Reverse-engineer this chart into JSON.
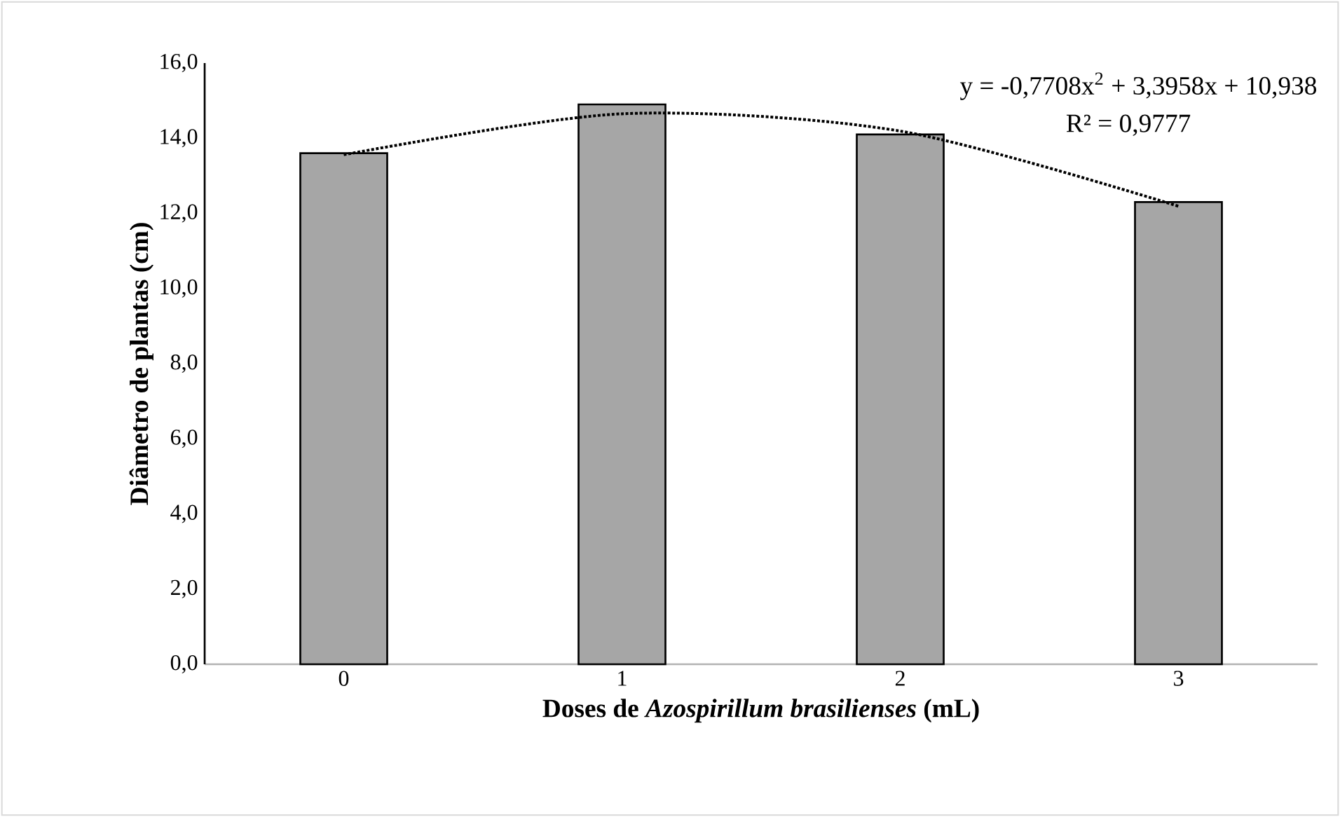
{
  "chart_data": {
    "type": "bar",
    "xlabel": "Doses de *Azospirillum brasilienses* (mL)",
    "ylabel": "Diâmetro de plantas (cm)",
    "categories": [
      "0",
      "1",
      "2",
      "3"
    ],
    "series": [
      {
        "color": "#a6a6a6",
        "values": [
          13.6,
          14.9,
          14.1,
          12.3
        ]
      },
      {
        "type": "line",
        "color": "#000000",
        "line_style": "dotted",
        "values": [
          13.56,
          14.65,
          14.19,
          12.19
        ]
      }
    ],
    "ylim": [
      0,
      16
    ],
    "yticks": [
      {
        "value": 0,
        "label": "0,0"
      },
      {
        "value": 2,
        "label": "2,0"
      },
      {
        "value": 4,
        "label": "4,0"
      },
      {
        "value": 6,
        "label": "6,0"
      },
      {
        "value": 8,
        "label": "8,0"
      },
      {
        "value": 10,
        "label": "10,0"
      },
      {
        "value": 12,
        "label": "12,0"
      },
      {
        "value": 14,
        "label": "14,0"
      },
      {
        "value": 16,
        "label": "16,0"
      }
    ],
    "annotations": [
      "y = -0,7708x$^{2}$ + 3,3958x + 10,938",
      "R² = 0,9777"
    ],
    "grid": false
  }
}
